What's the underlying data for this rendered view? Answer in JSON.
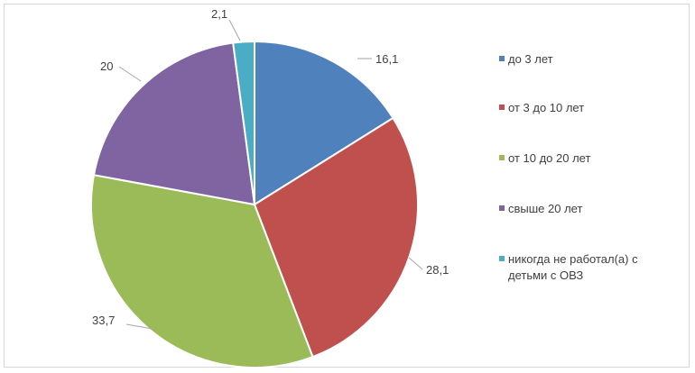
{
  "chart_data": {
    "type": "pie",
    "categories": [
      "до 3 лет",
      "от 3 до 10 лет",
      "от 10 до 20 лет",
      "свыше 20 лет",
      "никогда не работал(а) с детьми с ОВЗ"
    ],
    "values": [
      16.1,
      28.1,
      33.7,
      20,
      2.1
    ],
    "value_labels": [
      "16,1",
      "28,1",
      "33,7",
      "20",
      "2,1"
    ],
    "colors": [
      "#4f81bd",
      "#c0504d",
      "#9bbb59",
      "#8064a2",
      "#4bacc6"
    ],
    "legend_lines": [
      [
        "до 3 лет"
      ],
      [
        "от 3 до 10 лет"
      ],
      [
        "от 10 до 20 лет"
      ],
      [
        "свыше 20 лет"
      ],
      [
        "никогда не работал(а) с",
        "детьми с ОВЗ"
      ]
    ],
    "legend_position": "right",
    "start_angle": "top",
    "direction": "clockwise"
  }
}
